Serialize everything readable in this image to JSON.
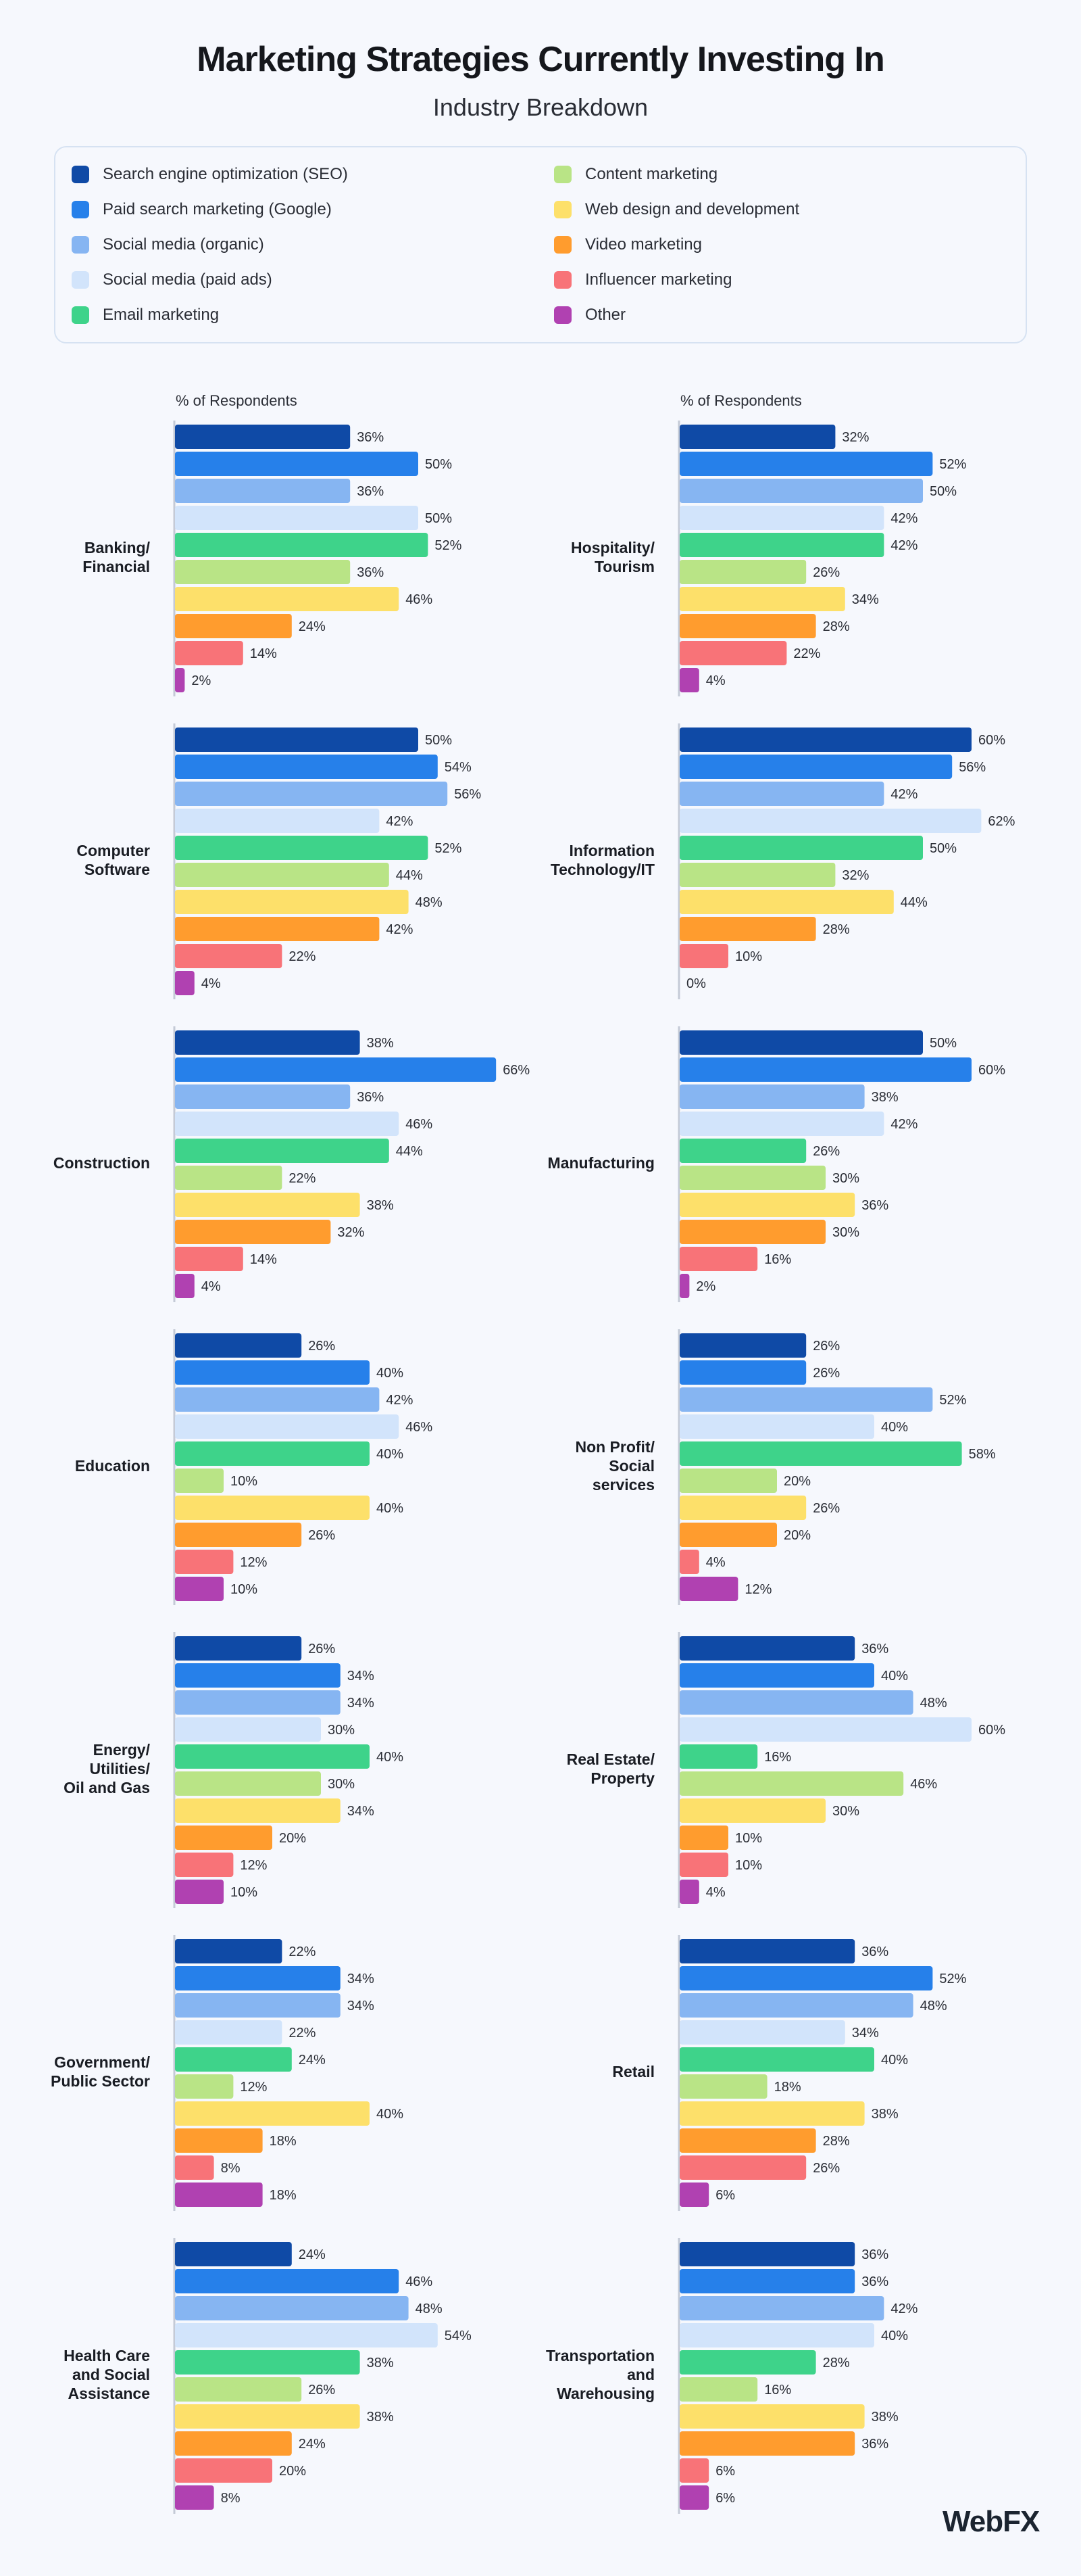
{
  "title": "Marketing Strategies Currently Investing In",
  "subtitle": "Industry Breakdown",
  "legend": [
    {
      "label": "Search engine optimization (SEO)",
      "color": "#0f4aa6"
    },
    {
      "label": "Paid search marketing (Google)",
      "color": "#2680ea"
    },
    {
      "label": "Social media (organic)",
      "color": "#86b5f2"
    },
    {
      "label": "Social media (paid ads)",
      "color": "#d2e4fb"
    },
    {
      "label": "Email marketing",
      "color": "#3ed38a"
    },
    {
      "label": "Content marketing",
      "color": "#b9e486"
    },
    {
      "label": "Web design and development",
      "color": "#fde06a"
    },
    {
      "label": "Video marketing",
      "color": "#ff9c2e"
    },
    {
      "label": "Influencer marketing",
      "color": "#f87378"
    },
    {
      "label": "Other",
      "color": "#b041b1"
    }
  ],
  "chart_data": {
    "type": "bar",
    "orientation": "horizontal",
    "title": "Marketing Strategies Currently Investing In",
    "subtitle": "Industry Breakdown",
    "xlabel": "% of Respondents",
    "xlim": [
      0,
      70
    ],
    "series_names": [
      "Search engine optimization (SEO)",
      "Paid search marketing (Google)",
      "Social media (organic)",
      "Social media (paid ads)",
      "Email marketing",
      "Content marketing",
      "Web design and development",
      "Video marketing",
      "Influencer marketing",
      "Other"
    ],
    "panels": [
      {
        "label": "Banking/\nFinancial",
        "values": [
          36,
          50,
          36,
          50,
          52,
          36,
          46,
          24,
          14,
          2
        ]
      },
      {
        "label": "Hospitality/\nTourism",
        "values": [
          32,
          52,
          50,
          42,
          42,
          26,
          34,
          28,
          22,
          4
        ]
      },
      {
        "label": "Computer\nSoftware",
        "values": [
          50,
          54,
          56,
          42,
          52,
          44,
          48,
          42,
          22,
          4
        ]
      },
      {
        "label": "Information\nTechnology/IT",
        "values": [
          60,
          56,
          42,
          62,
          50,
          32,
          44,
          28,
          10,
          0
        ]
      },
      {
        "label": "Construction",
        "values": [
          38,
          66,
          36,
          46,
          44,
          22,
          38,
          32,
          14,
          4
        ]
      },
      {
        "label": "Manufacturing",
        "values": [
          50,
          60,
          38,
          42,
          26,
          30,
          36,
          30,
          16,
          2
        ]
      },
      {
        "label": "Education",
        "values": [
          26,
          40,
          42,
          46,
          40,
          10,
          40,
          26,
          12,
          10
        ]
      },
      {
        "label": "Non Profit/\nSocial\nservices",
        "values": [
          26,
          26,
          52,
          40,
          58,
          20,
          26,
          20,
          4,
          12
        ]
      },
      {
        "label": "Energy/\nUtilities/\nOil and Gas",
        "values": [
          26,
          34,
          34,
          30,
          40,
          30,
          34,
          20,
          12,
          10
        ]
      },
      {
        "label": "Real Estate/\nProperty",
        "values": [
          36,
          40,
          48,
          60,
          16,
          46,
          30,
          10,
          10,
          4
        ]
      },
      {
        "label": "Government/\nPublic Sector",
        "values": [
          22,
          34,
          34,
          22,
          24,
          12,
          40,
          18,
          8,
          18
        ]
      },
      {
        "label": "Retail",
        "values": [
          36,
          52,
          48,
          34,
          40,
          18,
          38,
          28,
          26,
          6
        ]
      },
      {
        "label": "Health Care\nand Social\nAssistance",
        "values": [
          24,
          46,
          48,
          54,
          38,
          26,
          38,
          24,
          20,
          8
        ]
      },
      {
        "label": "Transportation\nand\nWarehousing",
        "values": [
          36,
          36,
          42,
          40,
          28,
          16,
          38,
          36,
          6,
          6
        ]
      }
    ],
    "value_suffix": "%"
  },
  "logo": "WebFX"
}
